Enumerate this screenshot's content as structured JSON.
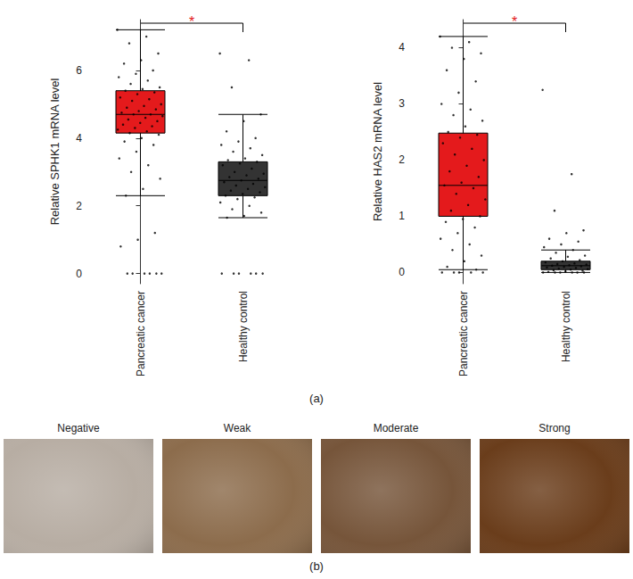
{
  "chart_data": [
    {
      "type": "boxplot",
      "y_label": "Relative SPHK1 mRNA level",
      "categories": [
        "Pancreatic cancer",
        "Healthy control"
      ],
      "values": [
        [
          2.3,
          4.15,
          4.7,
          5.4,
          7.2
        ],
        [
          1.65,
          2.3,
          2.75,
          3.3,
          4.7
        ]
      ],
      "colors": [
        "#e41a1c",
        "#333333"
      ],
      "points": [
        [
          7.2,
          7.0,
          6.8,
          6.5,
          6.3,
          6.2,
          6.0,
          5.9,
          5.8,
          5.7,
          5.6,
          5.5,
          5.45,
          5.4,
          5.35,
          5.3,
          5.2,
          5.15,
          5.1,
          5.0,
          4.95,
          4.9,
          4.85,
          4.8,
          4.75,
          4.7,
          4.7,
          4.65,
          4.6,
          4.55,
          4.5,
          4.45,
          4.4,
          4.35,
          4.3,
          4.25,
          4.2,
          4.15,
          4.1,
          4.0,
          3.9,
          3.8,
          3.6,
          3.4,
          3.2,
          3.0,
          2.8,
          2.5,
          2.3,
          1.2,
          1.0,
          0.8,
          0,
          0,
          0,
          0,
          0,
          0
        ],
        [
          6.5,
          6.3,
          5.5,
          4.7,
          4.5,
          4.2,
          4.0,
          3.9,
          3.8,
          3.7,
          3.6,
          3.5,
          3.4,
          3.35,
          3.3,
          3.25,
          3.2,
          3.1,
          3.0,
          2.95,
          2.9,
          2.85,
          2.8,
          2.75,
          2.7,
          2.65,
          2.6,
          2.55,
          2.5,
          2.45,
          2.4,
          2.35,
          2.3,
          2.25,
          2.2,
          2.1,
          2.0,
          1.9,
          1.8,
          1.7,
          1.65,
          0,
          0,
          0,
          0,
          0,
          0
        ]
      ],
      "ylim": [
        -0.3,
        7.5
      ],
      "yticks": [
        0,
        2,
        4,
        6
      ],
      "grid": false,
      "annotations": [
        {
          "text": "*",
          "from": "Pancreatic cancer",
          "to": "Healthy control",
          "color": "#e41a1c"
        }
      ]
    },
    {
      "type": "boxplot",
      "y_label": "Relative HAS2 mRNA level",
      "categories": [
        "Pancreatic cancer",
        "Healthy control"
      ],
      "values": [
        [
          0.05,
          1.0,
          1.55,
          2.48,
          4.2
        ],
        [
          0.0,
          0.05,
          0.12,
          0.2,
          0.4
        ]
      ],
      "colors": [
        "#e41a1c",
        "#333333"
      ],
      "points": [
        [
          4.2,
          4.1,
          4.0,
          3.9,
          3.8,
          3.6,
          3.4,
          3.2,
          3.0,
          2.9,
          2.8,
          2.7,
          2.6,
          2.5,
          2.45,
          2.4,
          2.3,
          2.2,
          2.1,
          2.0,
          1.9,
          1.8,
          1.7,
          1.6,
          1.55,
          1.5,
          1.4,
          1.3,
          1.2,
          1.1,
          1.0,
          0.95,
          0.9,
          0.8,
          0.7,
          0.6,
          0.5,
          0.4,
          0.3,
          0.2,
          0.1,
          0.05,
          0,
          0,
          0,
          0,
          0
        ],
        [
          3.25,
          1.75,
          1.1,
          0.75,
          0.7,
          0.6,
          0.55,
          0.5,
          0.45,
          0.4,
          0.35,
          0.3,
          0.28,
          0.25,
          0.22,
          0.2,
          0.18,
          0.16,
          0.15,
          0.14,
          0.13,
          0.12,
          0.11,
          0.1,
          0.09,
          0.08,
          0.07,
          0.06,
          0.05,
          0.04,
          0.03,
          0.02,
          0.01,
          0,
          0,
          0,
          0,
          0,
          0
        ]
      ],
      "ylim": [
        -0.2,
        4.5
      ],
      "yticks": [
        0,
        1,
        2,
        3,
        4
      ],
      "grid": false,
      "annotations": [
        {
          "text": "*",
          "from": "Pancreatic cancer",
          "to": "Healthy control",
          "color": "#e41a1c"
        }
      ]
    }
  ],
  "panels": [
    {
      "label": "(a)"
    },
    {
      "label": "(b)",
      "images": [
        {
          "label": "Negative",
          "color": "#b7ada3"
        },
        {
          "label": "Weak",
          "color": "#8c6c4c"
        },
        {
          "label": "Moderate",
          "color": "#76553a"
        },
        {
          "label": "Strong",
          "color": "#6a3d1b"
        }
      ]
    }
  ]
}
